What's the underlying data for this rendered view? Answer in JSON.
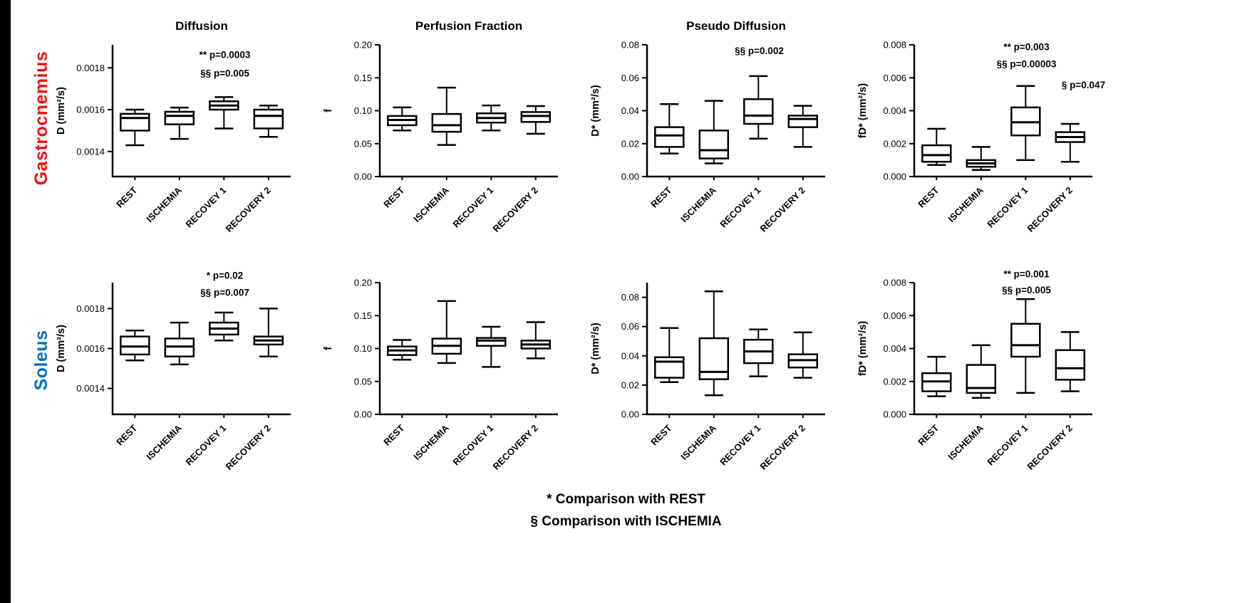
{
  "figure": {
    "row_labels": [
      {
        "text": "Gastrocnemius",
        "color": "#ee1111"
      },
      {
        "text": "Soleus",
        "color": "#0070c0"
      }
    ],
    "caption_lines": [
      "* Comparison with REST",
      "§ Comparison with ISCHEMIA"
    ]
  },
  "chart_data": {
    "type": "box",
    "color": "#000000",
    "categories": [
      "REST",
      "ISCHEMIA",
      "RECOVEY 1",
      "RECOVERY 2"
    ],
    "panels": [
      {
        "row": "Gastrocnemius",
        "title": "Diffusion",
        "ylabel": "D (mm²/s)",
        "ylim": [
          0.00128,
          0.00191
        ],
        "yticks": [
          0.0014,
          0.0016,
          0.0018
        ],
        "ytick_labels": [
          "0.0014",
          "0.0016",
          "0.0018"
        ],
        "boxes": [
          {
            "low": 0.00143,
            "q1": 0.0015,
            "median": 0.00156,
            "q3": 0.00158,
            "high": 0.0016
          },
          {
            "low": 0.00146,
            "q1": 0.00153,
            "median": 0.00157,
            "q3": 0.00159,
            "high": 0.00161
          },
          {
            "low": 0.00151,
            "q1": 0.0016,
            "median": 0.00162,
            "q3": 0.00164,
            "high": 0.00166
          },
          {
            "low": 0.00147,
            "q1": 0.00151,
            "median": 0.00157,
            "q3": 0.0016,
            "high": 0.00162
          }
        ],
        "annotations": [
          {
            "text": "** p=0.0003",
            "fx": 0.63,
            "fy": 0.1
          },
          {
            "text": "§§ p=0.005",
            "fx": 0.63,
            "fy": 0.24
          }
        ]
      },
      {
        "row": "Gastrocnemius",
        "title": "Perfusion Fraction",
        "ylabel": "f",
        "ylim": [
          0.0,
          0.2
        ],
        "yticks": [
          0.0,
          0.05,
          0.1,
          0.15,
          0.2
        ],
        "ytick_labels": [
          "0.00",
          "0.05",
          "0.10",
          "0.15",
          "0.20"
        ],
        "boxes": [
          {
            "low": 0.07,
            "q1": 0.078,
            "median": 0.086,
            "q3": 0.092,
            "high": 0.105
          },
          {
            "low": 0.048,
            "q1": 0.068,
            "median": 0.078,
            "q3": 0.095,
            "high": 0.135
          },
          {
            "low": 0.07,
            "q1": 0.082,
            "median": 0.089,
            "q3": 0.096,
            "high": 0.108
          },
          {
            "low": 0.065,
            "q1": 0.083,
            "median": 0.092,
            "q3": 0.098,
            "high": 0.107
          }
        ],
        "annotations": []
      },
      {
        "row": "Gastrocnemius",
        "title": "Pseudo Diffusion",
        "ylabel": "D* (mm²/s)",
        "ylim": [
          0.0,
          0.08
        ],
        "yticks": [
          0.0,
          0.02,
          0.04,
          0.06,
          0.08
        ],
        "ytick_labels": [
          "0.00",
          "0.02",
          "0.04",
          "0.06",
          "0.08"
        ],
        "boxes": [
          {
            "low": 0.014,
            "q1": 0.018,
            "median": 0.025,
            "q3": 0.03,
            "high": 0.044
          },
          {
            "low": 0.008,
            "q1": 0.011,
            "median": 0.016,
            "q3": 0.028,
            "high": 0.046
          },
          {
            "low": 0.023,
            "q1": 0.032,
            "median": 0.037,
            "q3": 0.047,
            "high": 0.061
          },
          {
            "low": 0.018,
            "q1": 0.03,
            "median": 0.035,
            "q3": 0.037,
            "high": 0.043
          }
        ],
        "annotations": [
          {
            "text": "§§ p=0.002",
            "fx": 0.63,
            "fy": 0.07
          }
        ]
      },
      {
        "row": "Gastrocnemius",
        "title": "",
        "ylabel": "fD* (mm²/s)",
        "ylim": [
          0.0,
          0.008
        ],
        "yticks": [
          0.0,
          0.002,
          0.004,
          0.006,
          0.008
        ],
        "ytick_labels": [
          "0.000",
          "0.002",
          "0.004",
          "0.006",
          "0.008"
        ],
        "boxes": [
          {
            "low": 0.0007,
            "q1": 0.0009,
            "median": 0.0013,
            "q3": 0.0019,
            "high": 0.0029
          },
          {
            "low": 0.0004,
            "q1": 0.0006,
            "median": 0.0008,
            "q3": 0.001,
            "high": 0.0018
          },
          {
            "low": 0.001,
            "q1": 0.0025,
            "median": 0.0033,
            "q3": 0.0042,
            "high": 0.0055
          },
          {
            "low": 0.0009,
            "q1": 0.0021,
            "median": 0.0024,
            "q3": 0.0027,
            "high": 0.0032
          }
        ],
        "annotations": [
          {
            "text": "** p=0.003",
            "fx": 0.63,
            "fy": 0.04
          },
          {
            "text": "§§ p=0.00003",
            "fx": 0.63,
            "fy": 0.17
          },
          {
            "text": "§ p=0.047",
            "fx": 0.95,
            "fy": 0.33
          }
        ]
      },
      {
        "row": "Soleus",
        "title": "",
        "ylabel": "D (mm²/s)",
        "ylim": [
          0.00127,
          0.00193
        ],
        "yticks": [
          0.0014,
          0.0016,
          0.0018
        ],
        "ytick_labels": [
          "0.0014",
          "0.0016",
          "0.0018"
        ],
        "boxes": [
          {
            "low": 0.00154,
            "q1": 0.00157,
            "median": 0.00161,
            "q3": 0.00166,
            "high": 0.00169
          },
          {
            "low": 0.00152,
            "q1": 0.00156,
            "median": 0.00161,
            "q3": 0.00165,
            "high": 0.00173
          },
          {
            "low": 0.00164,
            "q1": 0.00167,
            "median": 0.0017,
            "q3": 0.00173,
            "high": 0.00178
          },
          {
            "low": 0.00156,
            "q1": 0.00162,
            "median": 0.00164,
            "q3": 0.00166,
            "high": 0.0018
          }
        ],
        "annotations": [
          {
            "text": "* p=0.02",
            "fx": 0.63,
            "fy": -0.03
          },
          {
            "text": "§§ p=0.007",
            "fx": 0.63,
            "fy": 0.1
          }
        ]
      },
      {
        "row": "Soleus",
        "title": "",
        "ylabel": "f",
        "ylim": [
          0.0,
          0.2
        ],
        "yticks": [
          0.0,
          0.05,
          0.1,
          0.15,
          0.2
        ],
        "ytick_labels": [
          "0.00",
          "0.05",
          "0.10",
          "0.15",
          "0.20"
        ],
        "boxes": [
          {
            "low": 0.083,
            "q1": 0.09,
            "median": 0.097,
            "q3": 0.103,
            "high": 0.113
          },
          {
            "low": 0.078,
            "q1": 0.092,
            "median": 0.104,
            "q3": 0.115,
            "high": 0.172
          },
          {
            "low": 0.072,
            "q1": 0.104,
            "median": 0.112,
            "q3": 0.116,
            "high": 0.133
          },
          {
            "low": 0.085,
            "q1": 0.1,
            "median": 0.106,
            "q3": 0.112,
            "high": 0.14
          }
        ],
        "annotations": []
      },
      {
        "row": "Soleus",
        "title": "",
        "ylabel": "D* (mm²/s)",
        "ylim": [
          0.0,
          0.09
        ],
        "yticks": [
          0.0,
          0.02,
          0.04,
          0.06,
          0.08
        ],
        "ytick_labels": [
          "0.00",
          "0.02",
          "0.04",
          "0.06",
          "0.08"
        ],
        "boxes": [
          {
            "low": 0.022,
            "q1": 0.025,
            "median": 0.036,
            "q3": 0.039,
            "high": 0.059
          },
          {
            "low": 0.013,
            "q1": 0.024,
            "median": 0.029,
            "q3": 0.052,
            "high": 0.084
          },
          {
            "low": 0.026,
            "q1": 0.035,
            "median": 0.043,
            "q3": 0.051,
            "high": 0.058
          },
          {
            "low": 0.025,
            "q1": 0.032,
            "median": 0.037,
            "q3": 0.041,
            "high": 0.056
          }
        ],
        "annotations": []
      },
      {
        "row": "Soleus",
        "title": "",
        "ylabel": "fD* (mm²/s)",
        "ylim": [
          0.0,
          0.008
        ],
        "yticks": [
          0.0,
          0.002,
          0.004,
          0.006,
          0.008
        ],
        "ytick_labels": [
          "0.000",
          "0.002",
          "0.004",
          "0.006",
          "0.008"
        ],
        "boxes": [
          {
            "low": 0.0011,
            "q1": 0.0014,
            "median": 0.002,
            "q3": 0.0025,
            "high": 0.0035
          },
          {
            "low": 0.001,
            "q1": 0.0013,
            "median": 0.0016,
            "q3": 0.003,
            "high": 0.0042
          },
          {
            "low": 0.0013,
            "q1": 0.0035,
            "median": 0.0042,
            "q3": 0.0055,
            "high": 0.007
          },
          {
            "low": 0.0014,
            "q1": 0.0021,
            "median": 0.0028,
            "q3": 0.0039,
            "high": 0.005
          }
        ],
        "annotations": [
          {
            "text": "** p=0.001",
            "fx": 0.63,
            "fy": -0.04
          },
          {
            "text": "§§ p=0.005",
            "fx": 0.63,
            "fy": 0.08
          }
        ]
      }
    ]
  }
}
